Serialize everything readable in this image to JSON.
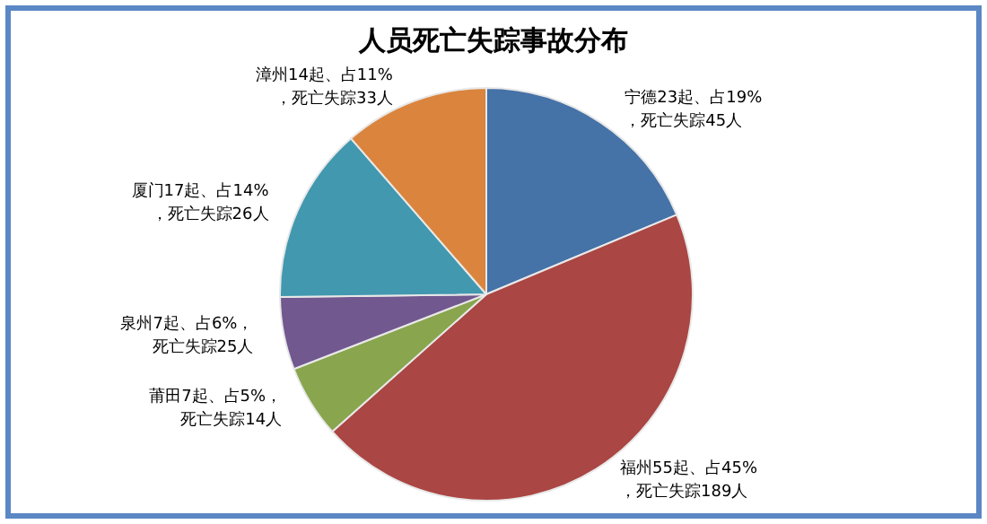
{
  "chart_data": {
    "type": "pie",
    "title": "人员死亡失踪事故分布",
    "categories": [
      "宁德",
      "福州",
      "莆田",
      "泉州",
      "厦门",
      "漳州"
    ],
    "values": [
      23,
      55,
      7,
      7,
      17,
      14
    ],
    "value_labels": [
      "23起、占19%，死亡失踪45人",
      "55起、占45%，死亡失踪189人",
      "7起、占5%，死亡失踪14人",
      "7起、占6%，死亡失踪25人",
      "17起、占14%，死亡失踪26人",
      "14起、占11%，死亡失踪33人"
    ],
    "colors": [
      "#4572a7",
      "#aa4643",
      "#89a54e",
      "#71588f",
      "#4198af",
      "#db843d"
    ],
    "legend": false
  }
}
